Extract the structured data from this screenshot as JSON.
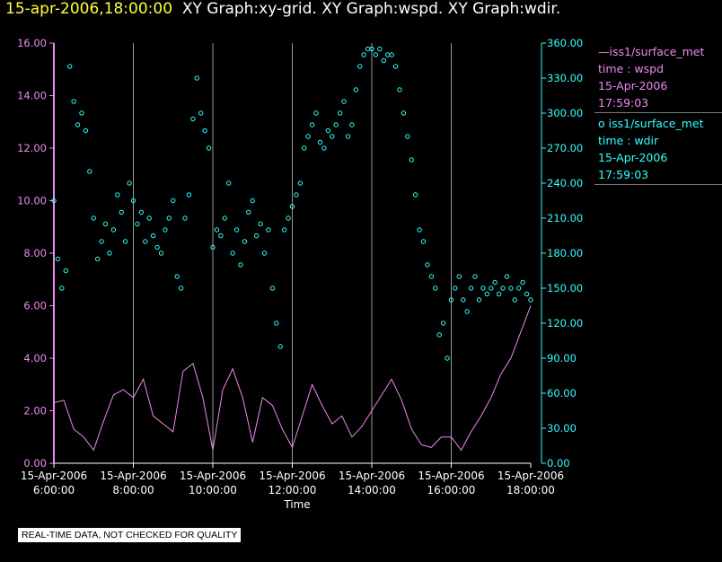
{
  "header": {
    "timestamp": "15-apr-2006,18:00:00",
    "graphs": "XY Graph:xy-grid.  XY Graph:wspd.  XY Graph:wdir."
  },
  "legend": {
    "wspd": {
      "name": "iss1/surface_met",
      "field": "time : wspd",
      "date": "15-Apr-2006",
      "time": "17:59:03"
    },
    "wdir": {
      "name": "iss1/surface_met",
      "field": "time : wdir",
      "date": "15-Apr-2006",
      "time": "17:59:03"
    }
  },
  "notice": "REAL-TIME DATA, NOT CHECKED FOR QUALITY",
  "colors": {
    "wspd": "#ee88ee",
    "wdir": "#33ffff",
    "grid": "#999999",
    "left_axis": "#ee88ee",
    "right_axis": "#33ffff"
  },
  "chart_data": {
    "type": "line",
    "xlabel": "Time",
    "x_ticks": [
      {
        "date": "15-Apr-2006",
        "time": "6:00:00",
        "hour": 6
      },
      {
        "date": "15-Apr-2006",
        "time": "8:00:00",
        "hour": 8
      },
      {
        "date": "15-Apr-2006",
        "time": "10:00:00",
        "hour": 10
      },
      {
        "date": "15-Apr-2006",
        "time": "12:00:00",
        "hour": 12
      },
      {
        "date": "15-Apr-2006",
        "time": "14:00:00",
        "hour": 14
      },
      {
        "date": "15-Apr-2006",
        "time": "16:00:00",
        "hour": 16
      },
      {
        "date": "15-Apr-2006",
        "time": "18:00:00",
        "hour": 18
      }
    ],
    "xlim": [
      6,
      18
    ],
    "y_left": {
      "lim": [
        0,
        16
      ],
      "ticks": [
        "0.00",
        "2.00",
        "4.00",
        "6.00",
        "8.00",
        "10.00",
        "12.00",
        "14.00",
        "16.00"
      ]
    },
    "y_right": {
      "lim": [
        0,
        360
      ],
      "ticks": [
        "0.00",
        "30.00",
        "60.00",
        "90.00",
        "120.00",
        "150.00",
        "180.00",
        "210.00",
        "240.00",
        "270.00",
        "300.00",
        "330.00",
        "360.00"
      ]
    },
    "grid": "vertical",
    "legend_position": "right",
    "series": [
      {
        "key": "wspd",
        "type": "line",
        "axis": "left",
        "x": [
          6.0,
          6.25,
          6.5,
          6.75,
          7.0,
          7.25,
          7.5,
          7.75,
          8.0,
          8.25,
          8.5,
          8.75,
          9.0,
          9.25,
          9.5,
          9.75,
          10.0,
          10.25,
          10.5,
          10.75,
          11.0,
          11.25,
          11.5,
          11.75,
          12.0,
          12.25,
          12.5,
          12.75,
          13.0,
          13.25,
          13.5,
          13.75,
          14.0,
          14.25,
          14.5,
          14.75,
          15.0,
          15.25,
          15.5,
          15.75,
          16.0,
          16.25,
          16.5,
          16.75,
          17.0,
          17.25,
          17.5,
          17.75,
          18.0
        ],
        "y": [
          2.3,
          2.4,
          1.3,
          1.0,
          0.5,
          1.6,
          2.6,
          2.8,
          2.5,
          3.2,
          1.8,
          1.5,
          1.2,
          3.5,
          3.8,
          2.5,
          0.5,
          2.8,
          3.6,
          2.5,
          0.8,
          2.5,
          2.2,
          1.3,
          0.6,
          1.8,
          3.0,
          2.2,
          1.5,
          1.8,
          1.0,
          1.4,
          2.0,
          2.6,
          3.2,
          2.4,
          1.3,
          0.7,
          0.6,
          1.0,
          1.0,
          0.5,
          1.2,
          1.8,
          2.5,
          3.4,
          4.0,
          5.0,
          6.0
        ]
      },
      {
        "key": "wdir",
        "type": "scatter",
        "axis": "right",
        "x": [
          6.0,
          6.1,
          6.2,
          6.3,
          6.4,
          6.5,
          6.6,
          6.7,
          6.8,
          6.9,
          7.0,
          7.1,
          7.2,
          7.3,
          7.4,
          7.5,
          7.6,
          7.7,
          7.8,
          7.9,
          8.0,
          8.1,
          8.2,
          8.3,
          8.4,
          8.5,
          8.6,
          8.7,
          8.8,
          8.9,
          9.0,
          9.1,
          9.2,
          9.3,
          9.4,
          9.5,
          9.6,
          9.7,
          9.8,
          9.9,
          10.0,
          10.1,
          10.2,
          10.3,
          10.4,
          10.5,
          10.6,
          10.7,
          10.8,
          10.9,
          11.0,
          11.1,
          11.2,
          11.3,
          11.4,
          11.5,
          11.6,
          11.7,
          11.8,
          11.9,
          12.0,
          12.1,
          12.2,
          12.3,
          12.4,
          12.5,
          12.6,
          12.7,
          12.8,
          12.9,
          13.0,
          13.1,
          13.2,
          13.3,
          13.4,
          13.5,
          13.6,
          13.7,
          13.8,
          13.9,
          14.0,
          14.1,
          14.2,
          14.3,
          14.4,
          14.5,
          14.6,
          14.7,
          14.8,
          14.9,
          15.0,
          15.1,
          15.2,
          15.3,
          15.4,
          15.5,
          15.6,
          15.7,
          15.8,
          15.9,
          16.0,
          16.1,
          16.2,
          16.3,
          16.4,
          16.5,
          16.6,
          16.7,
          16.8,
          16.9,
          17.0,
          17.1,
          17.2,
          17.3,
          17.4,
          17.5,
          17.6,
          17.7,
          17.8,
          17.9,
          18.0
        ],
        "y": [
          225,
          175,
          150,
          165,
          340,
          310,
          290,
          300,
          285,
          250,
          210,
          175,
          190,
          205,
          180,
          200,
          230,
          215,
          190,
          240,
          225,
          205,
          215,
          190,
          210,
          195,
          185,
          180,
          200,
          210,
          225,
          160,
          150,
          210,
          230,
          295,
          330,
          300,
          285,
          270,
          185,
          200,
          195,
          210,
          240,
          180,
          200,
          170,
          190,
          215,
          225,
          195,
          205,
          180,
          200,
          150,
          120,
          100,
          200,
          210,
          220,
          230,
          240,
          270,
          280,
          290,
          300,
          275,
          270,
          285,
          280,
          290,
          300,
          310,
          280,
          290,
          320,
          340,
          350,
          355,
          355,
          350,
          355,
          345,
          350,
          350,
          340,
          320,
          300,
          280,
          260,
          230,
          200,
          190,
          170,
          160,
          150,
          110,
          120,
          90,
          140,
          150,
          160,
          140,
          130,
          150,
          160,
          140,
          150,
          145,
          150,
          155,
          145,
          150,
          160,
          150,
          140,
          150,
          155,
          145,
          140
        ]
      }
    ]
  }
}
